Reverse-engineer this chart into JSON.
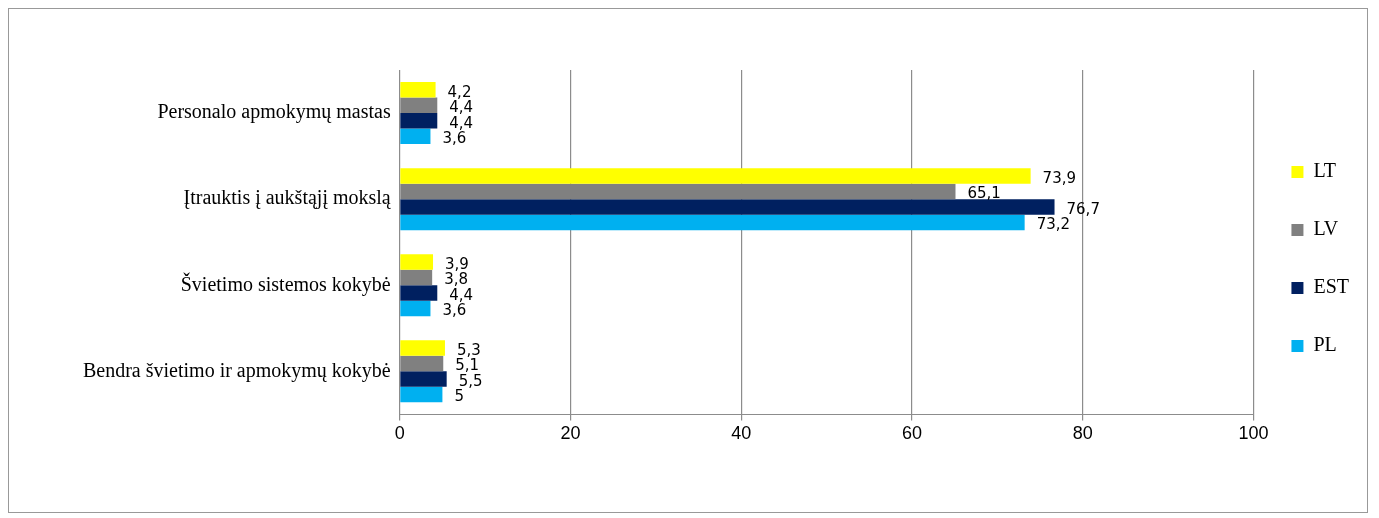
{
  "chart_data": {
    "type": "bar",
    "orientation": "horizontal",
    "categories": [
      "Personalo apmokymų mastas",
      "Įtrauktis į aukštąjį mokslą",
      "Švietimo sistemos kokybė",
      "Bendra švietimo ir apmokymų kokybė"
    ],
    "series": [
      {
        "name": "LT",
        "color": "#ffff00",
        "values": [
          4.2,
          73.9,
          3.9,
          5.3
        ],
        "value_labels": [
          "4,2",
          "73,9",
          "3,9",
          "5,3"
        ]
      },
      {
        "name": "LV",
        "color": "#808080",
        "values": [
          4.4,
          65.1,
          3.8,
          5.1
        ],
        "value_labels": [
          "4,4",
          "65,1",
          "3,8",
          "5,1"
        ]
      },
      {
        "name": "EST",
        "color": "#002060",
        "values": [
          4.4,
          76.7,
          4.4,
          5.5
        ],
        "value_labels": [
          "4,4",
          "76,7",
          "4,4",
          "5,5"
        ]
      },
      {
        "name": "PL",
        "color": "#00b0f0",
        "values": [
          3.6,
          73.2,
          3.6,
          5
        ],
        "value_labels": [
          "3,6",
          "73,2",
          "3,6",
          "5"
        ]
      }
    ],
    "xlim": [
      0,
      100
    ],
    "xticks": [
      0,
      20,
      40,
      60,
      80,
      100
    ],
    "grid": "x",
    "legend": "right"
  }
}
